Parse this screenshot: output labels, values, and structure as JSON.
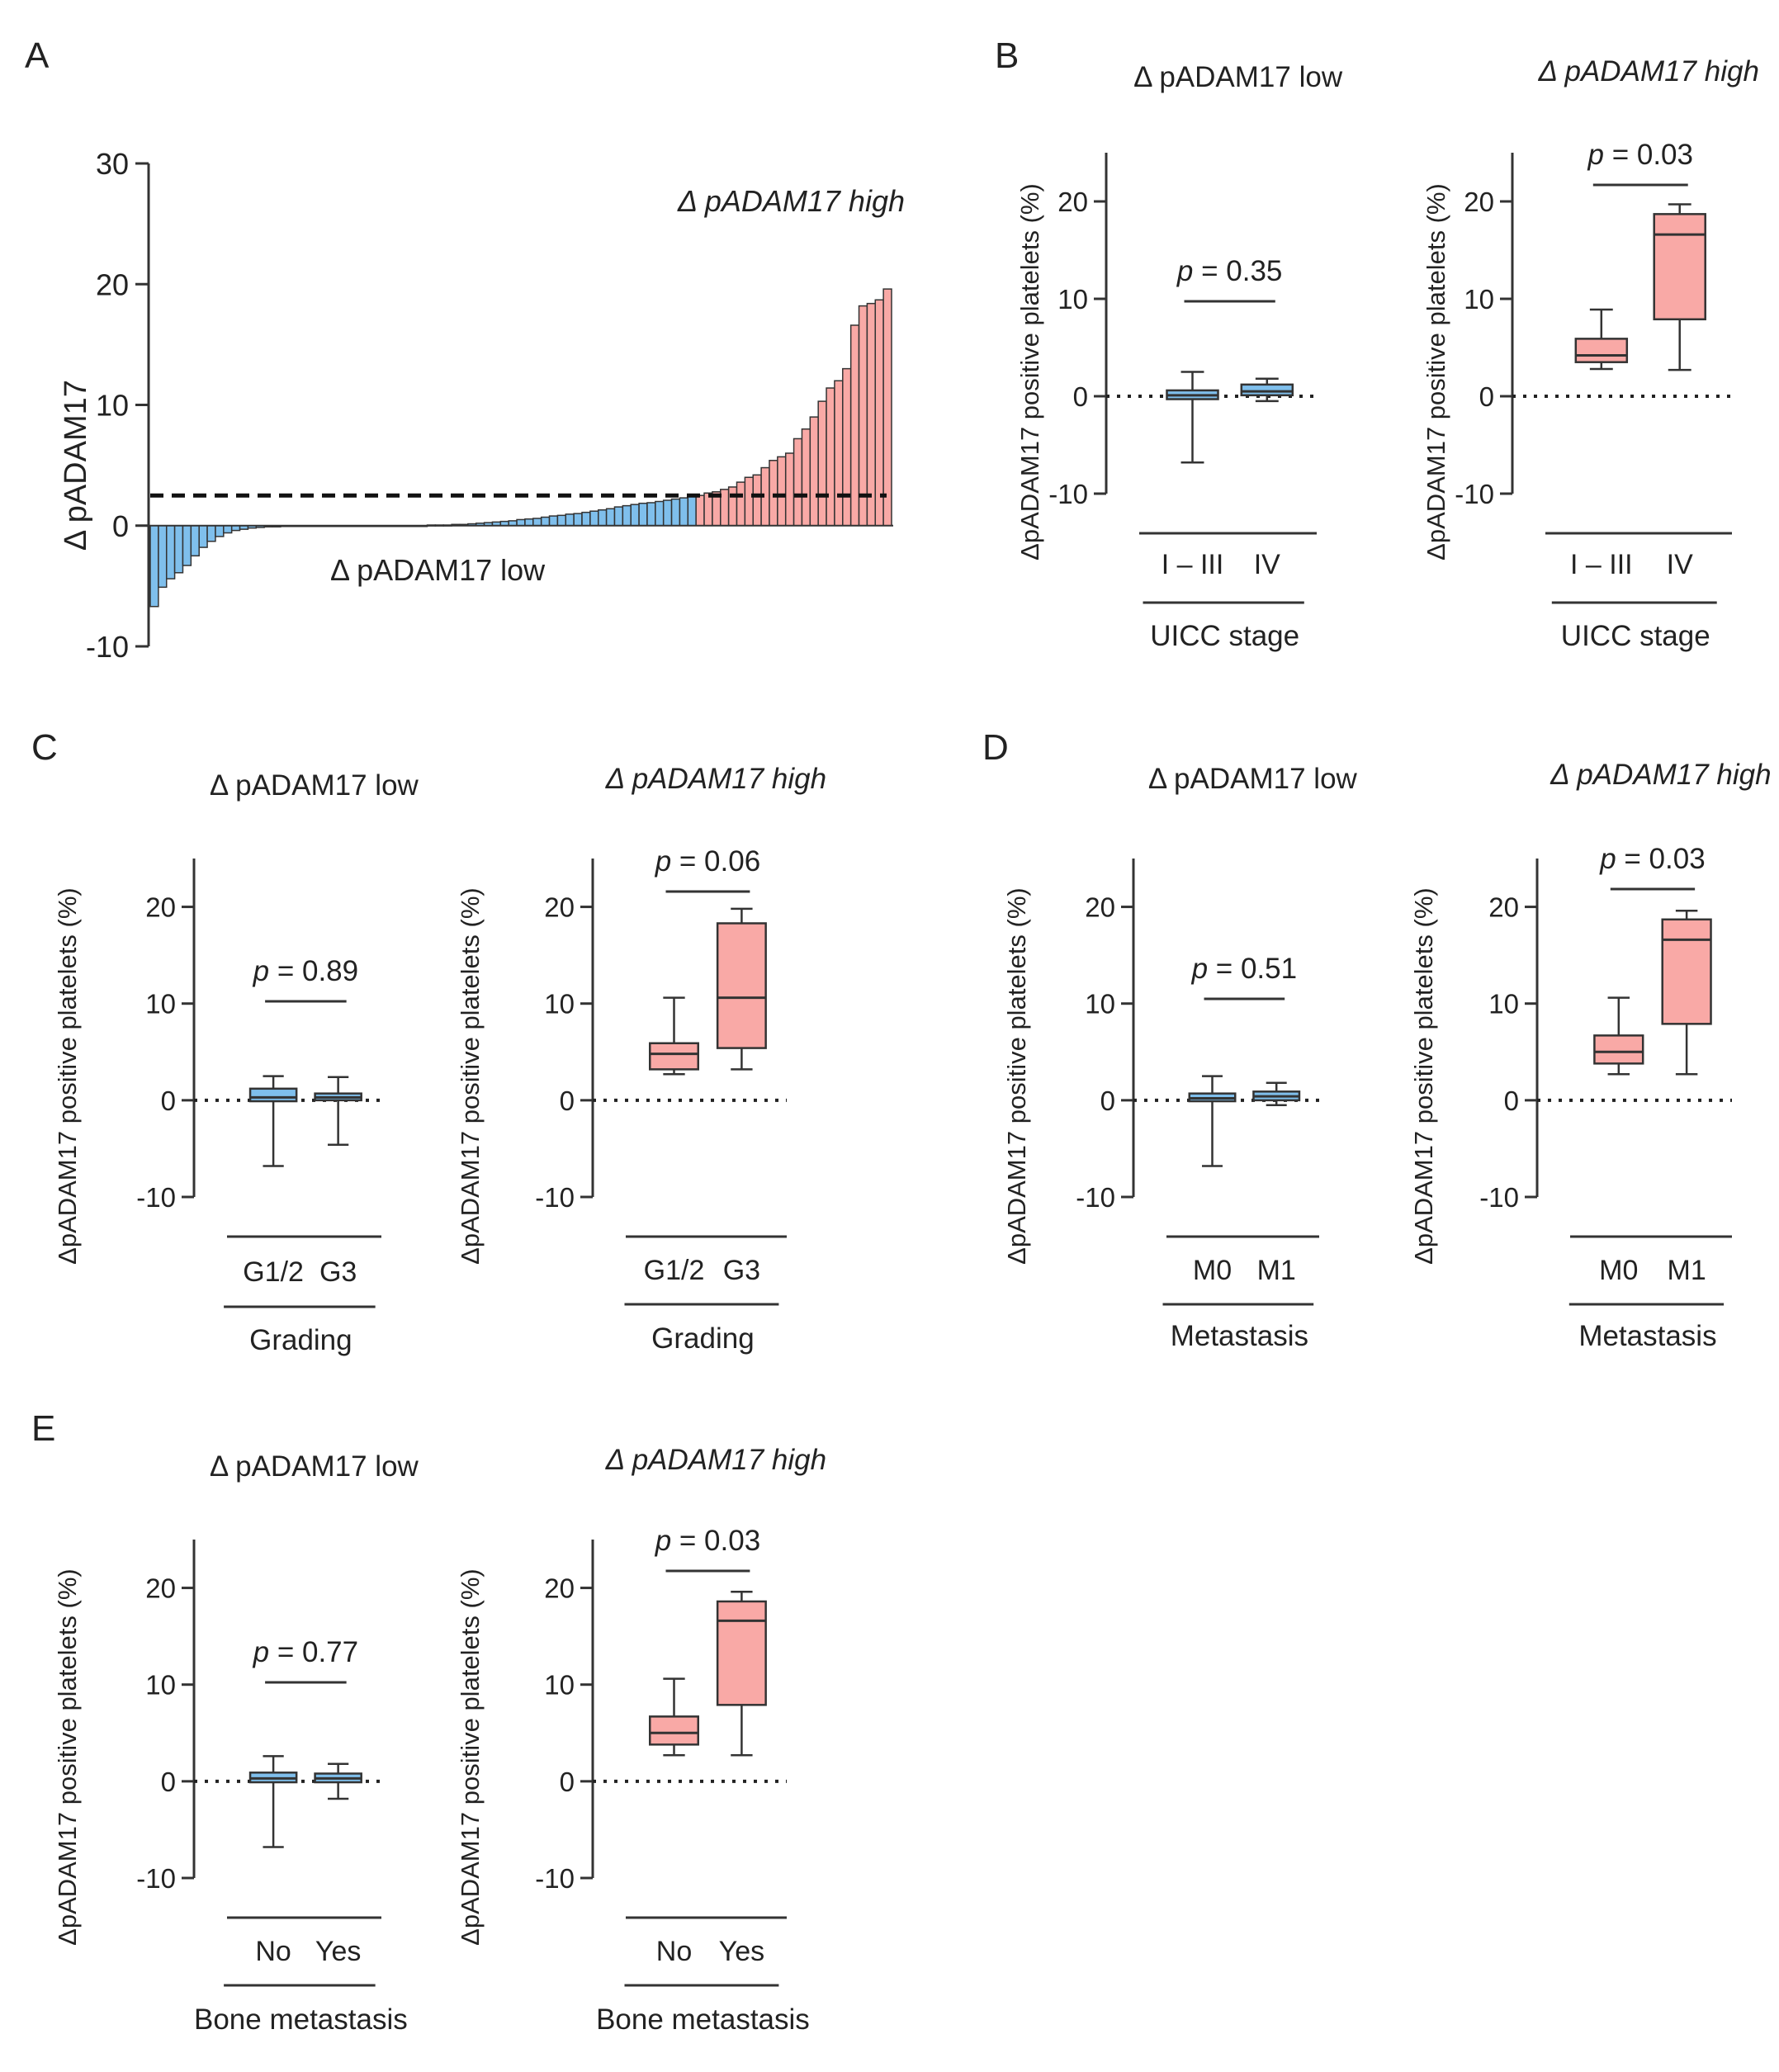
{
  "colors": {
    "low": "#7fbfec",
    "high": "#f9a9a6",
    "axis": "#333333"
  },
  "panels": {
    "A": "A",
    "B": "B",
    "C": "C",
    "D": "D",
    "E": "E"
  },
  "chart_data": [
    {
      "id": "A",
      "type": "bar",
      "ylabel": "Δ pADAM17",
      "ylim": [
        -10,
        30
      ],
      "yticks": [
        -10,
        0,
        10,
        20,
        30
      ],
      "threshold": 2.5,
      "label_high": "Δ pADAM17 high",
      "label_low": "Δ pADAM17 low",
      "values": [
        -6.7,
        -5.1,
        -4.4,
        -3.9,
        -3.3,
        -2.5,
        -1.8,
        -1.3,
        -0.9,
        -0.6,
        -0.4,
        -0.3,
        -0.2,
        -0.15,
        -0.1,
        -0.1,
        -0.05,
        -0.05,
        -0.05,
        -0.05,
        -0.05,
        -0.05,
        -0.05,
        -0.05,
        -0.05,
        -0.05,
        -0.05,
        -0.05,
        -0.05,
        -0.05,
        -0.05,
        -0.05,
        -0.05,
        -0.05,
        0.05,
        0.05,
        0.05,
        0.1,
        0.1,
        0.15,
        0.2,
        0.25,
        0.3,
        0.35,
        0.4,
        0.5,
        0.55,
        0.6,
        0.7,
        0.8,
        0.85,
        0.95,
        1.0,
        1.1,
        1.2,
        1.3,
        1.4,
        1.55,
        1.65,
        1.75,
        1.85,
        1.9,
        2.0,
        2.1,
        2.2,
        2.3,
        2.4,
        2.5,
        2.7,
        2.8,
        3.0,
        3.2,
        3.6,
        4.0,
        4.2,
        4.8,
        5.4,
        5.7,
        6.0,
        7.2,
        8.0,
        9.0,
        10.3,
        11.4,
        12.0,
        13.0,
        16.6,
        18.2,
        18.4,
        18.7,
        19.6
      ],
      "n_low": 67
    },
    {
      "id": "B-low",
      "type": "box",
      "title": "Δ pADAM17 low",
      "title_italic": false,
      "ylabel": "ΔpADAM17 positive platelets (%)",
      "ylim": [
        -10,
        25
      ],
      "yticks": [
        -10,
        0,
        10,
        20
      ],
      "categories": [
        "I – III",
        "IV"
      ],
      "xlabel": "UICC stage",
      "p_prefix": "p",
      "p_text": " = 0.35",
      "group": "low",
      "boxes": [
        {
          "min": -6.8,
          "q1": -0.3,
          "median": 0.1,
          "q3": 0.6,
          "max": 2.5
        },
        {
          "min": -0.5,
          "q1": 0.1,
          "median": 0.5,
          "q3": 1.2,
          "max": 1.8
        }
      ]
    },
    {
      "id": "B-high",
      "type": "box",
      "title": "Δ pADAM17 high",
      "title_italic": true,
      "ylabel": "ΔpADAM17 positive platelets (%)",
      "ylim": [
        -10,
        25
      ],
      "yticks": [
        -10,
        0,
        10,
        20
      ],
      "categories": [
        "I – III",
        "IV"
      ],
      "xlabel": "UICC stage",
      "p_prefix": "p",
      "p_text": " = 0.03",
      "group": "high",
      "boxes": [
        {
          "min": 2.8,
          "q1": 3.5,
          "median": 4.2,
          "q3": 5.9,
          "max": 8.9
        },
        {
          "min": 2.7,
          "q1": 7.9,
          "median": 16.6,
          "q3": 18.7,
          "max": 19.7
        }
      ]
    },
    {
      "id": "C-low",
      "type": "box",
      "title": "Δ pADAM17 low",
      "title_italic": false,
      "ylabel": "ΔpADAM17 positive platelets (%)",
      "ylim": [
        -10,
        25
      ],
      "yticks": [
        -10,
        0,
        10,
        20
      ],
      "categories": [
        "G1/2",
        "G3"
      ],
      "xlabel": "Grading",
      "p_prefix": "p",
      "p_text": " = 0.89",
      "group": "low",
      "boxes": [
        {
          "min": -6.8,
          "q1": -0.1,
          "median": 0.3,
          "q3": 1.2,
          "max": 2.5
        },
        {
          "min": -4.6,
          "q1": 0.0,
          "median": 0.3,
          "q3": 0.7,
          "max": 2.4
        }
      ]
    },
    {
      "id": "C-high",
      "type": "box",
      "title": "Δ pADAM17 high",
      "title_italic": true,
      "ylabel": "ΔpADAM17 positive platelets (%)",
      "ylim": [
        -10,
        25
      ],
      "yticks": [
        -10,
        0,
        10,
        20
      ],
      "categories": [
        "G1/2",
        "G3"
      ],
      "xlabel": "Grading",
      "p_prefix": "p",
      "p_text": " = 0.06",
      "group": "high",
      "boxes": [
        {
          "min": 2.7,
          "q1": 3.2,
          "median": 4.8,
          "q3": 5.9,
          "max": 10.6
        },
        {
          "min": 3.2,
          "q1": 5.4,
          "median": 10.6,
          "q3": 18.3,
          "max": 19.8
        }
      ]
    },
    {
      "id": "D-low",
      "type": "box",
      "title": "Δ pADAM17 low",
      "title_italic": false,
      "ylabel": "ΔpADAM17 positive platelets (%)",
      "ylim": [
        -10,
        25
      ],
      "yticks": [
        -10,
        0,
        10,
        20
      ],
      "categories": [
        "M0",
        "M1"
      ],
      "xlabel": "Metastasis",
      "p_prefix": "p",
      "p_text": " = 0.51",
      "group": "low",
      "boxes": [
        {
          "min": -6.8,
          "q1": -0.1,
          "median": 0.2,
          "q3": 0.7,
          "max": 2.5
        },
        {
          "min": -0.5,
          "q1": 0.0,
          "median": 0.4,
          "q3": 0.9,
          "max": 1.8
        }
      ]
    },
    {
      "id": "D-high",
      "type": "box",
      "title": "Δ pADAM17 high",
      "title_italic": true,
      "ylabel": "ΔpADAM17 positive platelets (%)",
      "ylim": [
        -10,
        25
      ],
      "yticks": [
        -10,
        0,
        10,
        20
      ],
      "categories": [
        "M0",
        "M1"
      ],
      "xlabel": "Metastasis",
      "p_prefix": "p",
      "p_text": " = 0.03",
      "group": "high",
      "boxes": [
        {
          "min": 2.7,
          "q1": 3.8,
          "median": 5.0,
          "q3": 6.7,
          "max": 10.6
        },
        {
          "min": 2.7,
          "q1": 7.9,
          "median": 16.6,
          "q3": 18.7,
          "max": 19.6
        }
      ]
    },
    {
      "id": "E-low",
      "type": "box",
      "title": "Δ pADAM17 low",
      "title_italic": false,
      "ylabel": "ΔpADAM17 positive platelets (%)",
      "ylim": [
        -10,
        25
      ],
      "yticks": [
        -10,
        0,
        10,
        20
      ],
      "categories": [
        "No",
        "Yes"
      ],
      "xlabel": "Bone metastasis",
      "p_prefix": "p",
      "p_text": " = 0.77",
      "group": "low",
      "boxes": [
        {
          "min": -6.8,
          "q1": -0.1,
          "median": 0.3,
          "q3": 0.9,
          "max": 2.6
        },
        {
          "min": -1.8,
          "q1": -0.1,
          "median": 0.3,
          "q3": 0.8,
          "max": 1.8
        }
      ]
    },
    {
      "id": "E-high",
      "type": "box",
      "title": "Δ pADAM17 high",
      "title_italic": true,
      "ylabel": "ΔpADAM17 positive platelets (%)",
      "ylim": [
        -10,
        25
      ],
      "yticks": [
        -10,
        0,
        10,
        20
      ],
      "categories": [
        "No",
        "Yes"
      ],
      "xlabel": "Bone metastasis",
      "p_prefix": "p",
      "p_text": " = 0.03",
      "group": "high",
      "boxes": [
        {
          "min": 2.7,
          "q1": 3.8,
          "median": 5.0,
          "q3": 6.7,
          "max": 10.6
        },
        {
          "min": 2.7,
          "q1": 7.9,
          "median": 16.6,
          "q3": 18.6,
          "max": 19.6
        }
      ]
    }
  ]
}
